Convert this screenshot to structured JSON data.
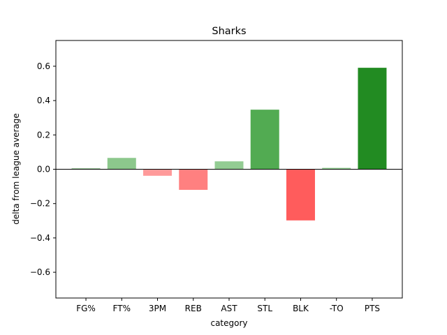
{
  "chart_data": {
    "type": "bar",
    "title": "Sharks",
    "xlabel": "category",
    "ylabel": "delta from league average",
    "categories": [
      "FG%",
      "FT%",
      "3PM",
      "REB",
      "AST",
      "STL",
      "BLK",
      "-TO",
      "PTS"
    ],
    "values": [
      0.004,
      0.066,
      -0.038,
      -0.12,
      0.046,
      0.347,
      -0.298,
      0.008,
      0.591
    ],
    "bar_colors": [
      "#2e8b2e",
      "#8cc88c",
      "#ff9a9a",
      "#ff8080",
      "#93cc93",
      "#52ab52",
      "#ff5c5c",
      "#8fcc8f",
      "#228b22"
    ],
    "ylim": [
      -0.75,
      0.75
    ],
    "yticks": [
      -0.6,
      -0.4,
      -0.2,
      0.0,
      0.2,
      0.4,
      0.6
    ],
    "ytick_labels": [
      "−0.6",
      "−0.4",
      "−0.2",
      "0.0",
      "0.2",
      "0.4",
      "0.6"
    ],
    "zero_line": true,
    "grid": false,
    "legend": "none"
  }
}
